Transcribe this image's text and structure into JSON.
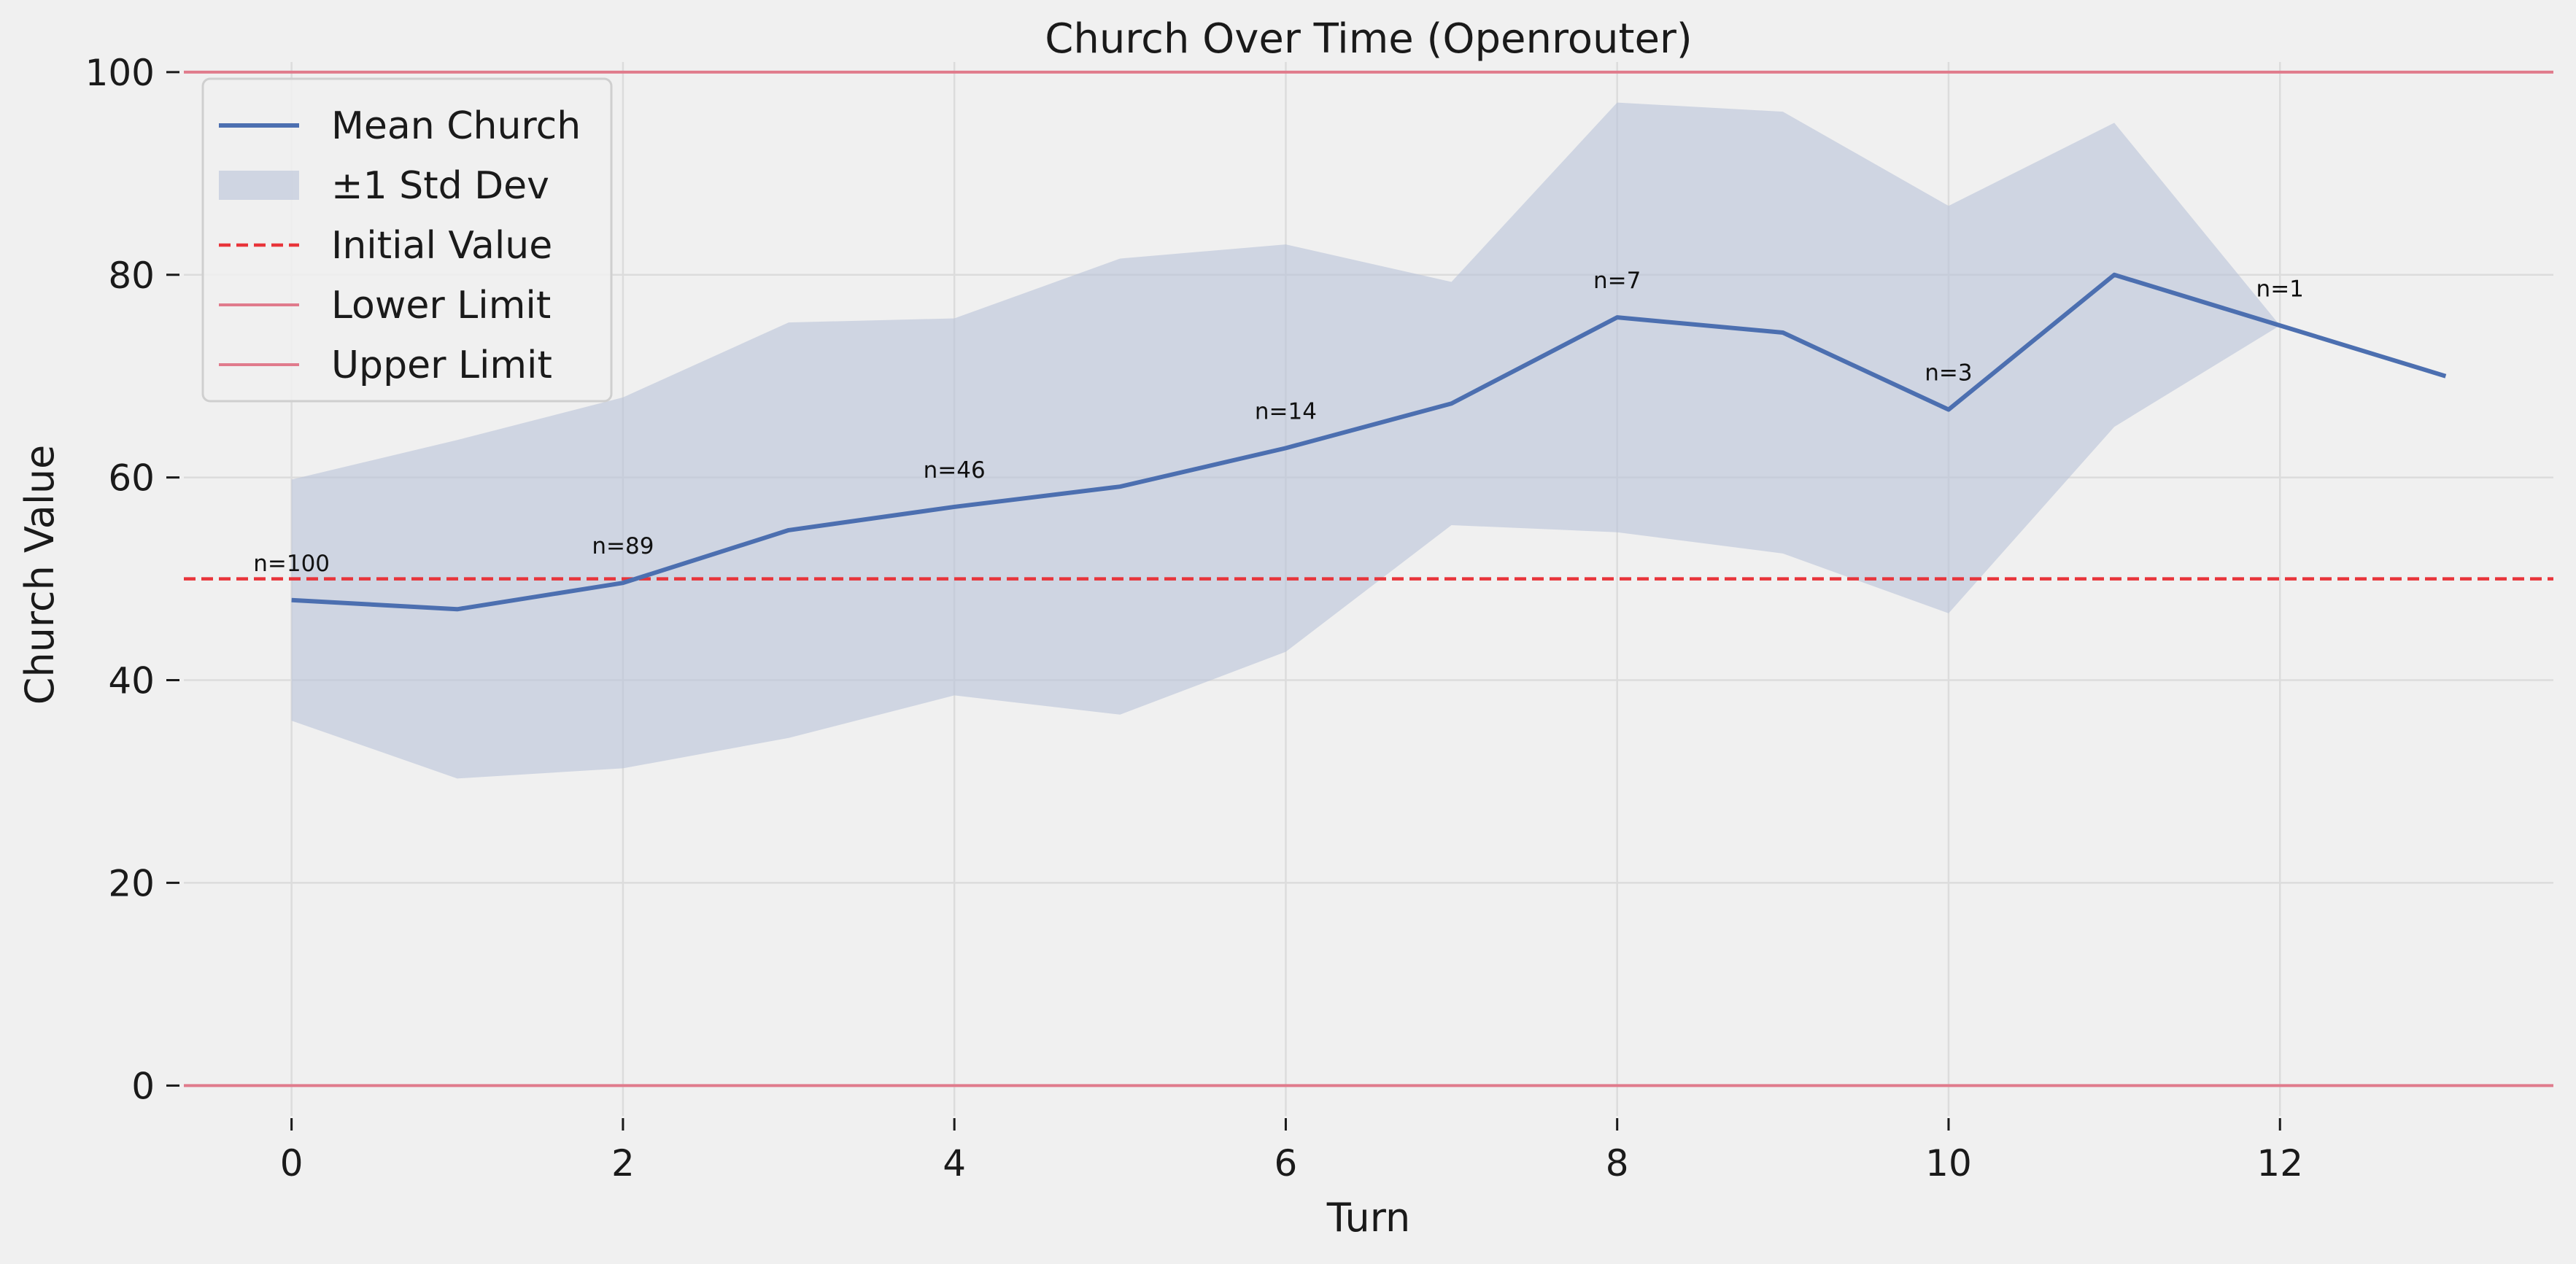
{
  "chart_data": {
    "type": "line",
    "title": "Church Over Time (Openrouter)",
    "xlabel": "Turn",
    "ylabel": "Church Value",
    "xlim": [
      -0.65,
      13.65
    ],
    "ylim": [
      -3,
      101
    ],
    "xticks": [
      0,
      2,
      4,
      6,
      8,
      10,
      12
    ],
    "yticks": [
      0,
      20,
      40,
      60,
      80,
      100
    ],
    "grid": true,
    "legend_position": "upper-left",
    "series": [
      {
        "name": "Mean Church",
        "type": "line",
        "color": "#4c6fb0",
        "x": [
          0,
          1,
          2,
          3,
          4,
          5,
          6,
          7,
          8,
          9,
          10,
          11,
          12,
          13
        ],
        "y": [
          47.9,
          47.0,
          49.6,
          54.8,
          57.1,
          59.1,
          62.9,
          67.3,
          75.8,
          74.3,
          66.7,
          80.0,
          75.0,
          70.0
        ]
      },
      {
        "name": "±1 Std Dev",
        "type": "band",
        "color": "#b9c3d8",
        "x": [
          0,
          1,
          2,
          3,
          4,
          5,
          6,
          7,
          8,
          9,
          10,
          11,
          12
        ],
        "upper": [
          59.8,
          63.7,
          67.9,
          75.3,
          75.7,
          81.6,
          83.0,
          79.3,
          97.0,
          96.1,
          86.8,
          95.0,
          75.0
        ],
        "lower": [
          36.0,
          30.3,
          31.3,
          34.3,
          38.5,
          36.6,
          42.8,
          55.3,
          54.6,
          52.5,
          46.6,
          65.0,
          75.0
        ]
      },
      {
        "name": "Initial Value",
        "type": "hline",
        "style": "dashed",
        "color": "#e8343a",
        "y": 50
      },
      {
        "name": "Lower Limit",
        "type": "hline",
        "style": "solid",
        "color": "#e07b8c",
        "y": 0
      },
      {
        "name": "Upper Limit",
        "type": "hline",
        "style": "solid",
        "color": "#e07b8c",
        "y": 100
      }
    ],
    "annotations": [
      {
        "text": "n=100",
        "x": 0,
        "y": 47.9
      },
      {
        "text": "n=89",
        "x": 2,
        "y": 49.6
      },
      {
        "text": "n=46",
        "x": 4,
        "y": 57.1
      },
      {
        "text": "n=14",
        "x": 6,
        "y": 62.9
      },
      {
        "text": "n=7",
        "x": 8,
        "y": 75.8
      },
      {
        "text": "n=3",
        "x": 10,
        "y": 66.7
      },
      {
        "text": "n=1",
        "x": 12,
        "y": 75.0
      }
    ]
  }
}
